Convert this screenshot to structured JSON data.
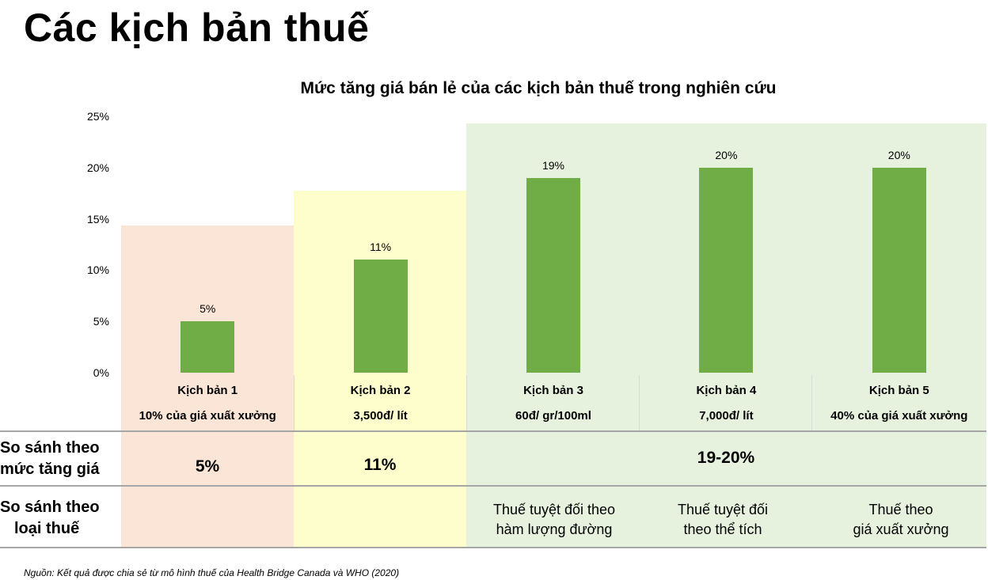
{
  "page": {
    "title": "Các kịch bản thuế",
    "source": "Nguồn: Kết quả được chia sẻ từ mô hình thuế của Health Bridge Canada và WHO (2020)"
  },
  "chart_data": {
    "type": "bar",
    "title": "Mức tăng giá bán lẻ của các kịch bản thuế trong nghiên cứu",
    "categories": [
      "Kịch bản 1",
      "Kịch bản 2",
      "Kịch bản 3",
      "Kịch bản 4",
      "Kịch bản 5"
    ],
    "rates": [
      "10% của giá xuất xưởng",
      "3,500đ/ lít",
      "60đ/ gr/100ml",
      "7,000đ/ lít",
      "40% của giá xuất xưởng"
    ],
    "values": [
      5,
      11,
      19,
      20,
      20
    ],
    "value_labels": [
      "5%",
      "11%",
      "19%",
      "20%",
      "20%"
    ],
    "ylim": [
      0,
      25
    ],
    "yticks": [
      0,
      5,
      10,
      15,
      20,
      25
    ],
    "ytick_labels": [
      "0%",
      "5%",
      "10%",
      "15%",
      "20%",
      "25%"
    ],
    "bar_color": "#70ad47",
    "band_colors": {
      "scenario1": "#fbe5d6",
      "scenario2": "#fefecc",
      "scenario3_5": "#e6f2de"
    }
  },
  "comparison": {
    "price_row": {
      "heading_line1": "So sánh theo",
      "heading_line2": "mức tăng giá",
      "values": [
        "5%",
        "11%",
        "19-20%"
      ]
    },
    "type_row": {
      "heading_line1": "So sánh theo",
      "heading_line2": "loại thuế",
      "values": [
        [
          "Thuế tuyệt đối theo",
          "hàm lượng đường"
        ],
        [
          "Thuế tuyệt đối",
          "theo thể tích"
        ],
        [
          "Thuế theo",
          "giá xuất xưởng"
        ]
      ]
    }
  }
}
